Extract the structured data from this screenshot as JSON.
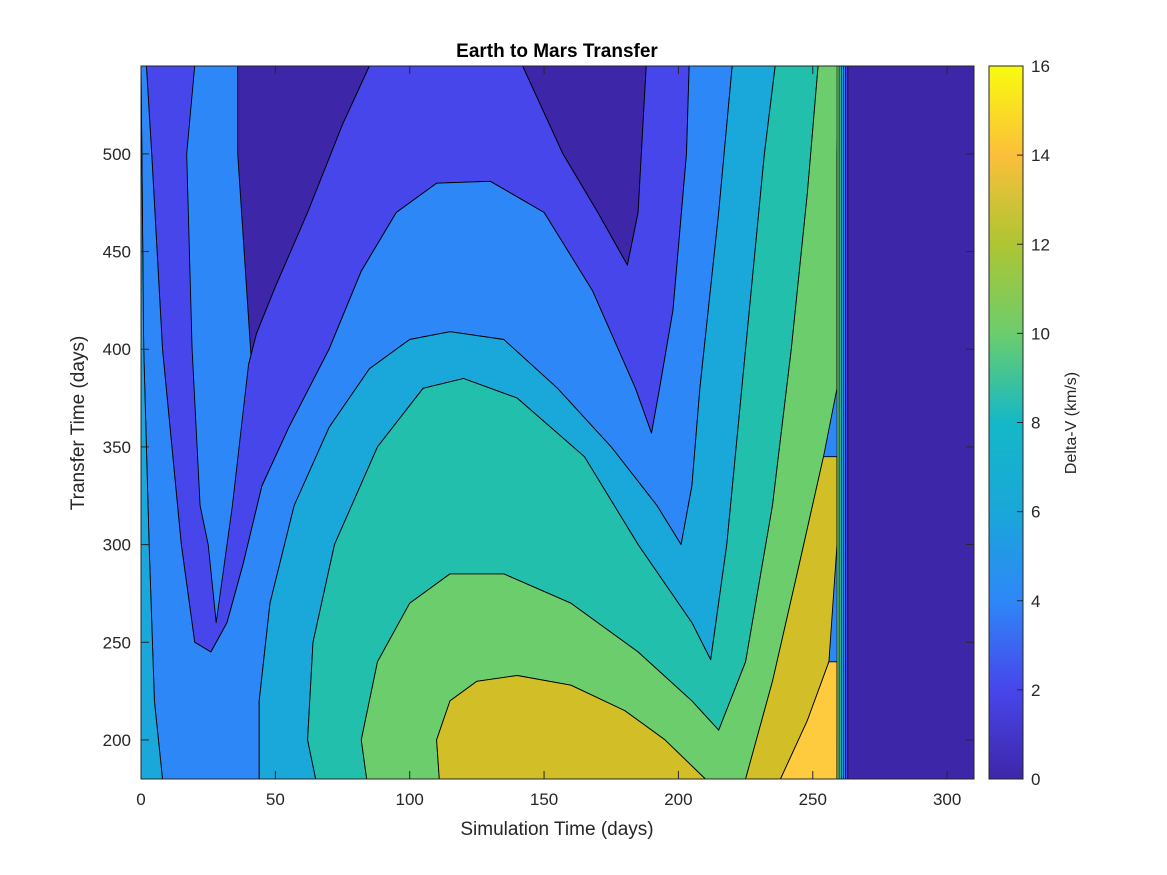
{
  "chart_data": {
    "type": "contourf",
    "title": "Earth to Mars Transfer",
    "xlabel": "Simulation Time (days)",
    "ylabel": "Transfer Time (days)",
    "colorbar_label": "Delta-V (km/s)",
    "xlim": [
      0,
      310
    ],
    "ylim": [
      180,
      545
    ],
    "clim": [
      0,
      16
    ],
    "x_ticks": [
      0,
      50,
      100,
      150,
      200,
      250,
      300
    ],
    "y_ticks": [
      200,
      250,
      300,
      350,
      400,
      450,
      500
    ],
    "colorbar_ticks": [
      0,
      2,
      4,
      6,
      8,
      10,
      12,
      14,
      16
    ],
    "contour_levels": [
      {
        "level_label": "0-2 km/s",
        "color": "#3e26a8",
        "regions": [
          [
            [
              36,
              545
            ],
            [
              85,
              545
            ],
            [
              75,
              515
            ],
            [
              62,
              470
            ],
            [
              50,
              432
            ],
            [
              43,
              408
            ],
            [
              40,
              392
            ],
            [
              41,
              395
            ],
            [
              36,
              500
            ]
          ],
          [
            [
              142,
              545
            ],
            [
              188,
              545
            ],
            [
              185,
              470
            ],
            [
              181,
              443
            ],
            [
              170,
              470
            ],
            [
              157,
              500
            ]
          ],
          [
            [
              263,
              180
            ],
            [
              310,
              180
            ],
            [
              310,
              545
            ],
            [
              263,
              545
            ]
          ],
          [
            [
              27,
              180
            ],
            [
              33,
              180
            ],
            [
              30,
              190
            ]
          ]
        ]
      },
      {
        "level_label": "2-4 km/s",
        "color": "#4746eb",
        "regions": [
          [
            [
              2,
              545
            ],
            [
              20,
              545
            ],
            [
              17,
              500
            ],
            [
              19,
              400
            ],
            [
              22,
              320
            ],
            [
              25,
              300
            ],
            [
              28,
              260
            ],
            [
              34,
              320
            ],
            [
              40,
              392
            ],
            [
              43,
              408
            ],
            [
              50,
              432
            ],
            [
              62,
              470
            ],
            [
              75,
              515
            ],
            [
              85,
              545
            ],
            [
              142,
              545
            ],
            [
              157,
              500
            ],
            [
              170,
              470
            ],
            [
              181,
              443
            ],
            [
              185,
              470
            ],
            [
              188,
              545
            ],
            [
              204,
              545
            ],
            [
              203,
              500
            ],
            [
              198,
              420
            ],
            [
              193,
              380
            ],
            [
              190,
              357
            ],
            [
              184,
              380
            ],
            [
              168,
              430
            ],
            [
              150,
              470
            ],
            [
              130,
              486
            ],
            [
              110,
              485
            ],
            [
              95,
              470
            ],
            [
              82,
              440
            ],
            [
              70,
              400
            ],
            [
              55,
              360
            ],
            [
              45,
              330
            ],
            [
              38,
              290
            ],
            [
              32,
              260
            ],
            [
              26,
              245
            ],
            [
              20,
              250
            ],
            [
              15,
              300
            ],
            [
              8,
              400
            ],
            [
              4,
              500
            ]
          ],
          [
            [
              22,
              180
            ],
            [
              38,
              180
            ],
            [
              30,
              190
            ]
          ]
        ]
      },
      {
        "level_label": "4-6 km/s",
        "color": "#2e87f7",
        "regions": [
          [
            [
              0,
              545
            ],
            [
              2,
              545
            ],
            [
              4,
              500
            ],
            [
              8,
              400
            ],
            [
              15,
              300
            ],
            [
              20,
              250
            ],
            [
              26,
              245
            ],
            [
              32,
              260
            ],
            [
              38,
              290
            ],
            [
              45,
              330
            ],
            [
              55,
              360
            ],
            [
              70,
              400
            ],
            [
              82,
              440
            ],
            [
              95,
              470
            ],
            [
              110,
              485
            ],
            [
              130,
              486
            ],
            [
              150,
              470
            ],
            [
              168,
              430
            ],
            [
              184,
              380
            ],
            [
              190,
              357
            ],
            [
              193,
              380
            ],
            [
              198,
              420
            ],
            [
              203,
              500
            ],
            [
              204,
              545
            ],
            [
              220,
              545
            ],
            [
              215,
              470
            ],
            [
              208,
              380
            ],
            [
              205,
              330
            ],
            [
              201,
              300
            ],
            [
              192,
              320
            ],
            [
              175,
              350
            ],
            [
              155,
              380
            ],
            [
              135,
              405
            ],
            [
              115,
              409
            ],
            [
              100,
              405
            ],
            [
              85,
              390
            ],
            [
              70,
              360
            ],
            [
              57,
              320
            ],
            [
              48,
              270
            ],
            [
              44,
              220
            ],
            [
              44,
              180
            ],
            [
              8,
              180
            ],
            [
              5,
              220
            ],
            [
              3,
              300
            ],
            [
              1,
              400
            ]
          ]
        ]
      },
      {
        "level_label": "6-8 km/s",
        "color": "#1aa7d9",
        "regions": [
          [
            [
              0,
              180
            ],
            [
              8,
              180
            ],
            [
              5,
              220
            ],
            [
              3,
              300
            ],
            [
              1,
              400
            ],
            [
              0,
              545
            ]
          ],
          [
            [
              44,
              180
            ],
            [
              65,
              180
            ],
            [
              62,
              200
            ],
            [
              64,
              250
            ],
            [
              72,
              300
            ],
            [
              88,
              350
            ],
            [
              105,
              380
            ],
            [
              120,
              385
            ],
            [
              140,
              375
            ],
            [
              165,
              345
            ],
            [
              185,
              300
            ],
            [
              205,
              260
            ],
            [
              212,
              241
            ],
            [
              218,
              300
            ],
            [
              225,
              400
            ],
            [
              232,
              500
            ],
            [
              236,
              545
            ],
            [
              220,
              545
            ],
            [
              215,
              470
            ],
            [
              208,
              380
            ],
            [
              205,
              330
            ],
            [
              201,
              300
            ],
            [
              192,
              320
            ],
            [
              175,
              350
            ],
            [
              155,
              380
            ],
            [
              135,
              405
            ],
            [
              115,
              409
            ],
            [
              100,
              405
            ],
            [
              85,
              390
            ],
            [
              70,
              360
            ],
            [
              57,
              320
            ],
            [
              48,
              270
            ],
            [
              44,
              220
            ]
          ]
        ]
      },
      {
        "level_label": "8-10 km/s",
        "color": "#22bfac",
        "regions": [
          [
            [
              65,
              180
            ],
            [
              84,
              180
            ],
            [
              82,
              200
            ],
            [
              88,
              240
            ],
            [
              100,
              270
            ],
            [
              115,
              285
            ],
            [
              135,
              285
            ],
            [
              160,
              270
            ],
            [
              185,
              245
            ],
            [
              205,
              220
            ],
            [
              215,
              205
            ],
            [
              225,
              240
            ],
            [
              235,
              320
            ],
            [
              242,
              400
            ],
            [
              248,
              480
            ],
            [
              252,
              545
            ],
            [
              236,
              545
            ],
            [
              232,
              500
            ],
            [
              225,
              400
            ],
            [
              218,
              300
            ],
            [
              212,
              241
            ],
            [
              205,
              260
            ],
            [
              185,
              300
            ],
            [
              165,
              345
            ],
            [
              140,
              375
            ],
            [
              120,
              385
            ],
            [
              105,
              380
            ],
            [
              88,
              350
            ],
            [
              72,
              300
            ],
            [
              64,
              250
            ],
            [
              62,
              200
            ]
          ]
        ]
      },
      {
        "level_label": "10-12 km/s",
        "color": "#6ccd6c",
        "regions": [
          [
            [
              84,
              180
            ],
            [
              111,
              180
            ],
            [
              110,
              200
            ],
            [
              115,
              220
            ],
            [
              125,
              230
            ],
            [
              140,
              233
            ],
            [
              160,
              228
            ],
            [
              180,
              215
            ],
            [
              195,
              200
            ],
            [
              210,
              180
            ],
            [
              225,
              180
            ],
            [
              235,
              230
            ],
            [
              245,
              290
            ],
            [
              254,
              345
            ],
            [
              259,
              380
            ],
            [
              259,
              500
            ],
            [
              260,
              545
            ],
            [
              252,
              545
            ],
            [
              248,
              480
            ],
            [
              242,
              400
            ],
            [
              235,
              320
            ],
            [
              225,
              240
            ],
            [
              215,
              205
            ],
            [
              205,
              220
            ],
            [
              185,
              245
            ],
            [
              160,
              270
            ],
            [
              135,
              285
            ],
            [
              115,
              285
            ],
            [
              100,
              270
            ],
            [
              88,
              240
            ],
            [
              82,
              200
            ]
          ]
        ]
      },
      {
        "level_label": "12-14 km/s",
        "color": "#d2bf27",
        "regions": [
          [
            [
              111,
              180
            ],
            [
              210,
              180
            ],
            [
              195,
              200
            ],
            [
              180,
              215
            ],
            [
              160,
              228
            ],
            [
              140,
              233
            ],
            [
              125,
              230
            ],
            [
              115,
              220
            ],
            [
              110,
              200
            ]
          ],
          [
            [
              225,
              180
            ],
            [
              238,
              180
            ],
            [
              248,
              210
            ],
            [
              256,
              240
            ],
            [
              259,
              300
            ],
            [
              259,
              345
            ],
            [
              254,
              345
            ],
            [
              245,
              290
            ],
            [
              235,
              230
            ]
          ]
        ]
      },
      {
        "level_label": "14-16 km/s",
        "color": "#fecb3e",
        "regions": [
          [
            [
              238,
              180
            ],
            [
              259,
              180
            ],
            [
              259,
              200
            ],
            [
              259,
              240
            ],
            [
              256,
              240
            ],
            [
              248,
              210
            ]
          ]
        ]
      },
      {
        "level_label": "16+ km/s",
        "color": "#f9fb0e",
        "regions": [
          [
            [
              259,
              180
            ],
            [
              260,
              180
            ],
            [
              260,
              200
            ],
            [
              259,
              200
            ]
          ]
        ]
      }
    ],
    "transition_band": {
      "x_range": [
        259,
        263
      ],
      "colors": [
        "#6ccd6c",
        "#22bfac",
        "#1aa7d9",
        "#2e87f7",
        "#4746eb"
      ]
    }
  }
}
